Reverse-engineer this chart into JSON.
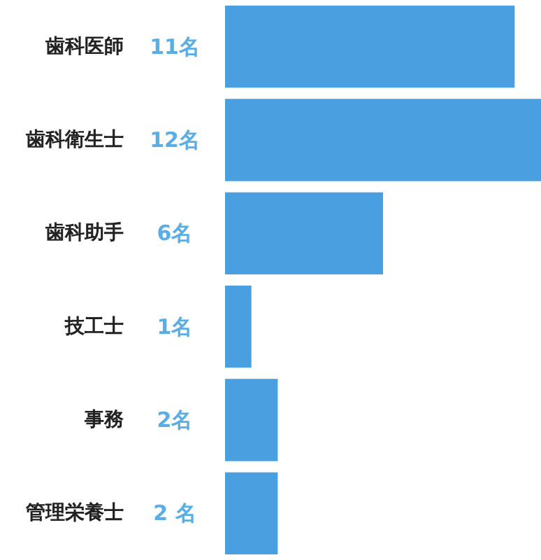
{
  "chart_data": {
    "type": "bar",
    "orientation": "horizontal",
    "categories": [
      "歯科医師",
      "歯科衛生士",
      "歯科助手",
      "技工士",
      "事務",
      "管理栄養士"
    ],
    "values": [
      11,
      12,
      6,
      1,
      2,
      2
    ],
    "value_labels": [
      "11名",
      "12名",
      "6名",
      "1名",
      "2名",
      "2 名"
    ],
    "color": "#4a9fe0"
  }
}
